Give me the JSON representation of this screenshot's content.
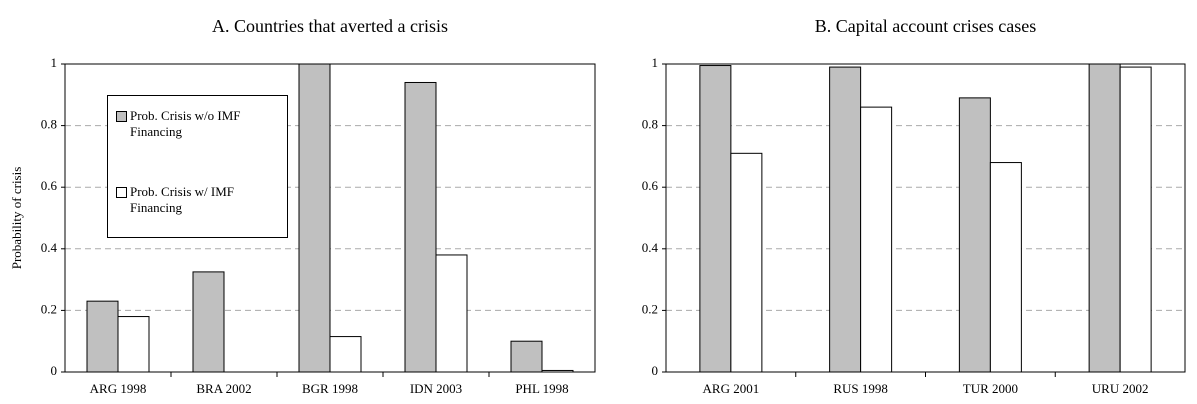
{
  "chart_data": [
    {
      "type": "bar",
      "title": "A. Countries that averted a crisis",
      "y_label": "Probability of crisis",
      "categories": [
        "ARG 1998",
        "BRA 2002",
        "BGR 1998",
        "IDN  2003",
        "PHL 1998"
      ],
      "series": [
        {
          "name": "Prob. Crisis w/o IMF Financing",
          "color": "#c0c0c0",
          "values": [
            0.23,
            0.325,
            1.0,
            0.94,
            0.1
          ]
        },
        {
          "name": "Prob. Crisis w/ IMF Financing",
          "color": "#ffffff",
          "values": [
            0.18,
            0,
            0.115,
            0.38,
            0.005
          ]
        }
      ],
      "ylim": [
        0,
        1
      ],
      "yticks": [
        0,
        0.2,
        0.4,
        0.6,
        0.8,
        1
      ],
      "grid": true,
      "legend": "upper left"
    },
    {
      "type": "bar",
      "title": "B. Capital account crises cases",
      "categories": [
        "ARG 2001",
        "RUS 1998",
        "TUR 2000",
        "URU 2002"
      ],
      "series": [
        {
          "color": "#c0c0c0",
          "values": [
            0.995,
            0.99,
            0.89,
            1.0
          ]
        },
        {
          "color": "#ffffff",
          "values": [
            0.71,
            0.86,
            0.68,
            0.99
          ]
        }
      ],
      "ylim": [
        0,
        1
      ],
      "yticks": [
        0,
        0.2,
        0.4,
        0.6,
        0.8,
        1
      ],
      "grid": true
    }
  ]
}
